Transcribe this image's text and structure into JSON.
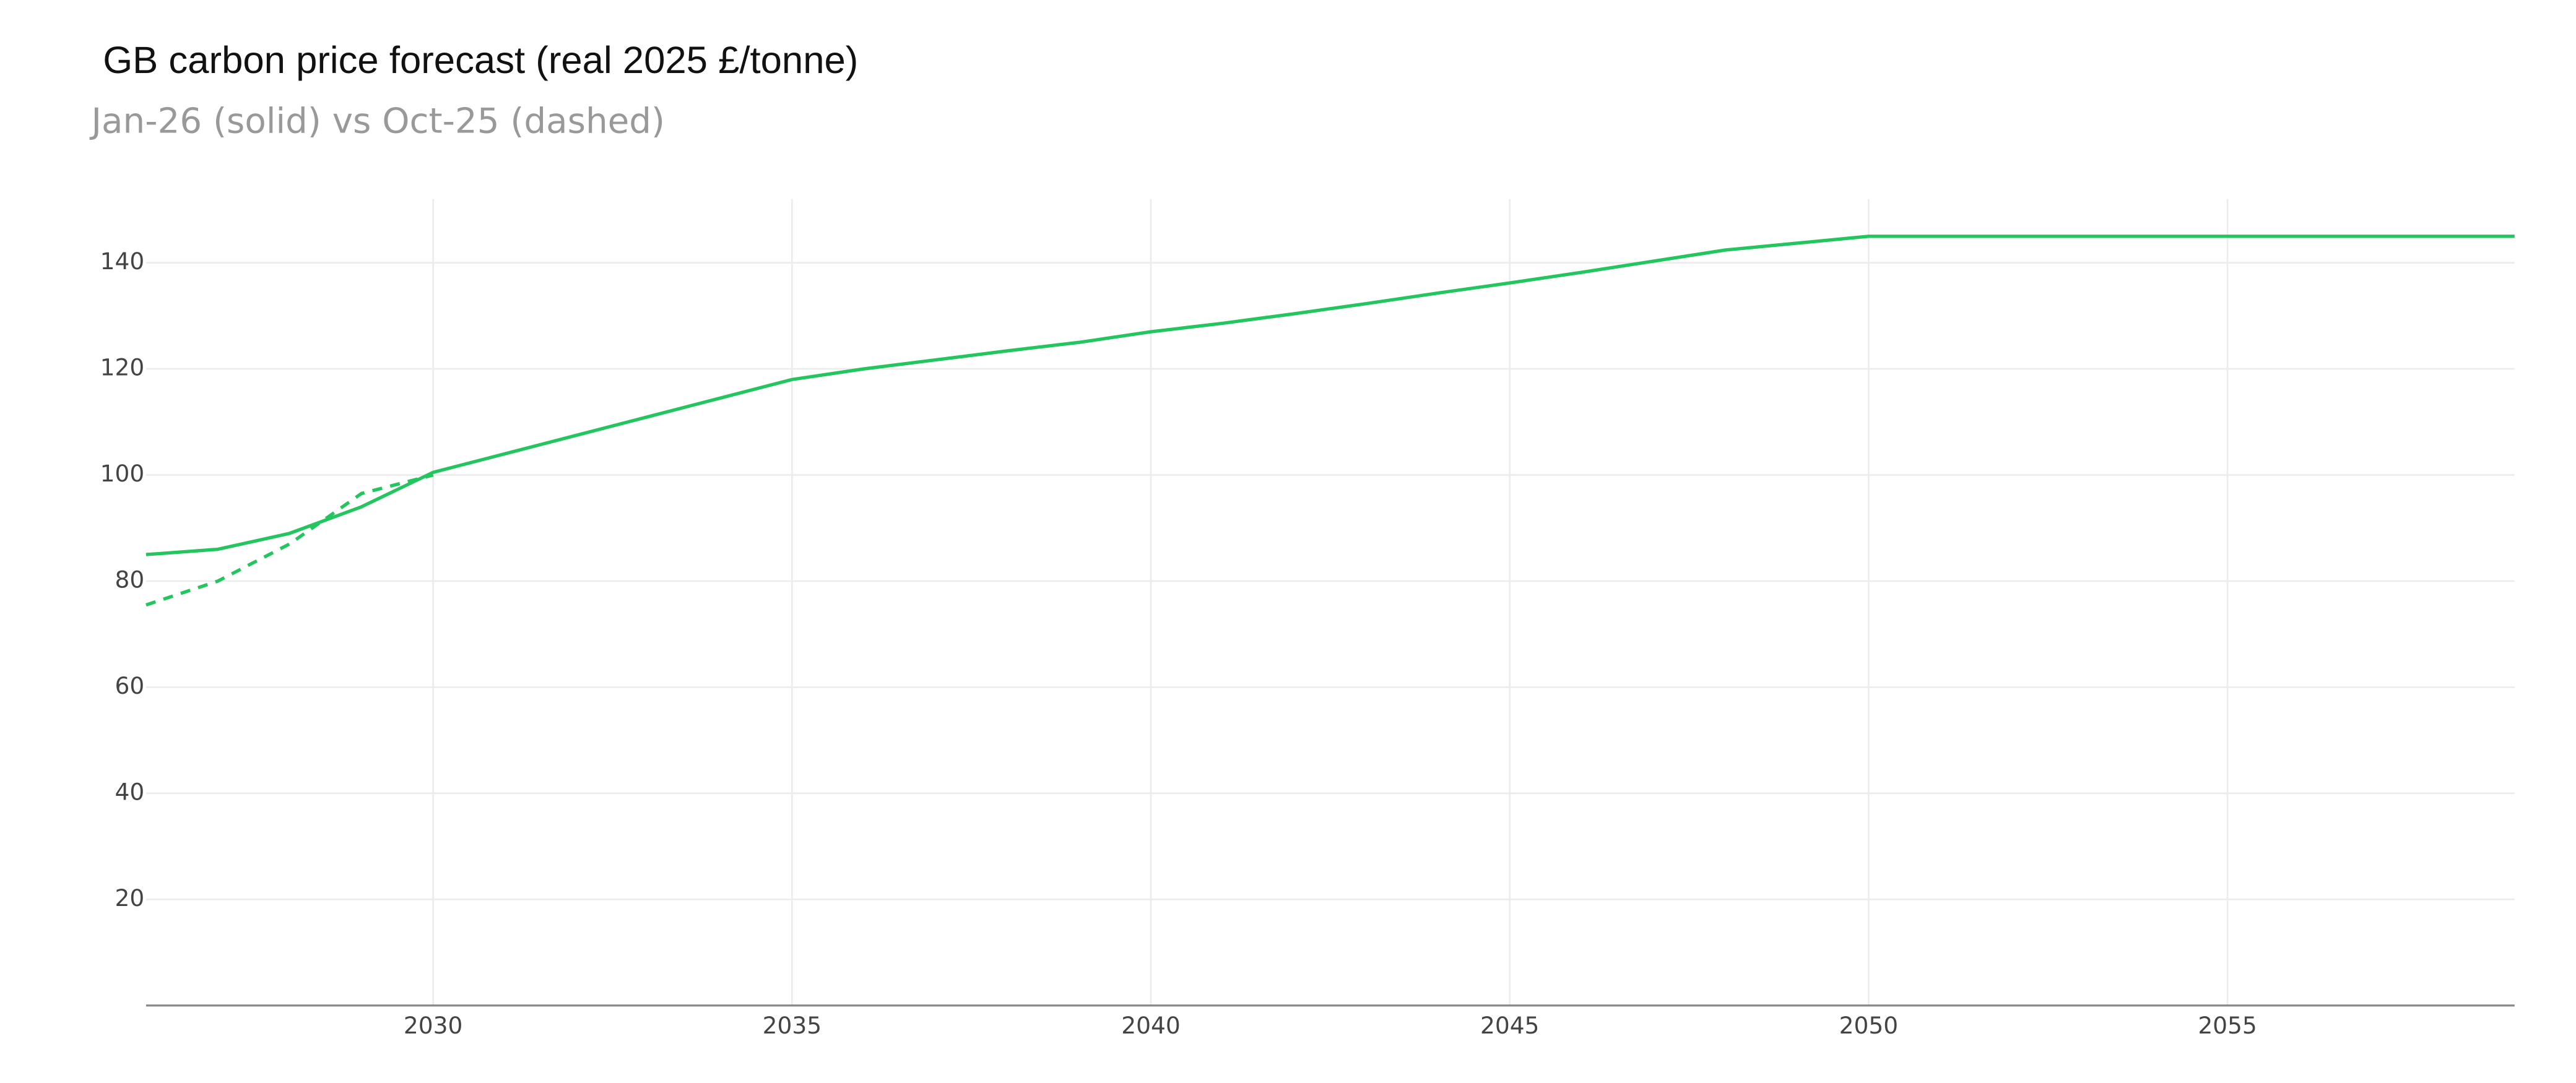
{
  "chart_data": {
    "type": "line",
    "title": "GB carbon price forecast (real 2025 £/tonne)",
    "subtitle": "Jan-26 (solid) vs Oct-25 (dashed)",
    "x": [
      2026,
      2027,
      2028,
      2029,
      2030,
      2031,
      2032,
      2033,
      2034,
      2035,
      2036,
      2037,
      2038,
      2039,
      2040,
      2041,
      2042,
      2043,
      2044,
      2045,
      2046,
      2047,
      2048,
      2049,
      2050,
      2051,
      2052,
      2053,
      2054,
      2055,
      2056,
      2057,
      2058,
      2059
    ],
    "series": [
      {
        "name": "Jan-26",
        "color": "#22c55e",
        "dash": false,
        "values": [
          85,
          86,
          89,
          94,
          100.5,
          104,
          107.5,
          111,
          114.5,
          118,
          120,
          121.7,
          123.4,
          125,
          127,
          128.6,
          130.4,
          132.3,
          134.3,
          136.2,
          138.2,
          140.3,
          142.4,
          143.7,
          145,
          145,
          145,
          145,
          145,
          145,
          145,
          145,
          145,
          145
        ]
      },
      {
        "name": "Oct-25",
        "color": "#22c55e",
        "dash": true,
        "values": [
          75.5,
          80,
          87,
          96.5,
          100,
          null,
          null,
          null,
          null,
          null,
          null,
          null,
          null,
          null,
          null,
          null,
          null,
          null,
          null,
          null,
          null,
          null,
          null,
          null,
          null,
          null,
          null,
          null,
          null,
          null,
          null,
          null,
          null,
          null
        ]
      }
    ],
    "xlim": [
      2026,
      2059
    ],
    "xticks": [
      2030,
      2035,
      2040,
      2045,
      2050,
      2055
    ],
    "ylim": [
      0,
      152
    ],
    "yticks": [
      20,
      40,
      60,
      80,
      100,
      120,
      140
    ],
    "grid": true
  }
}
